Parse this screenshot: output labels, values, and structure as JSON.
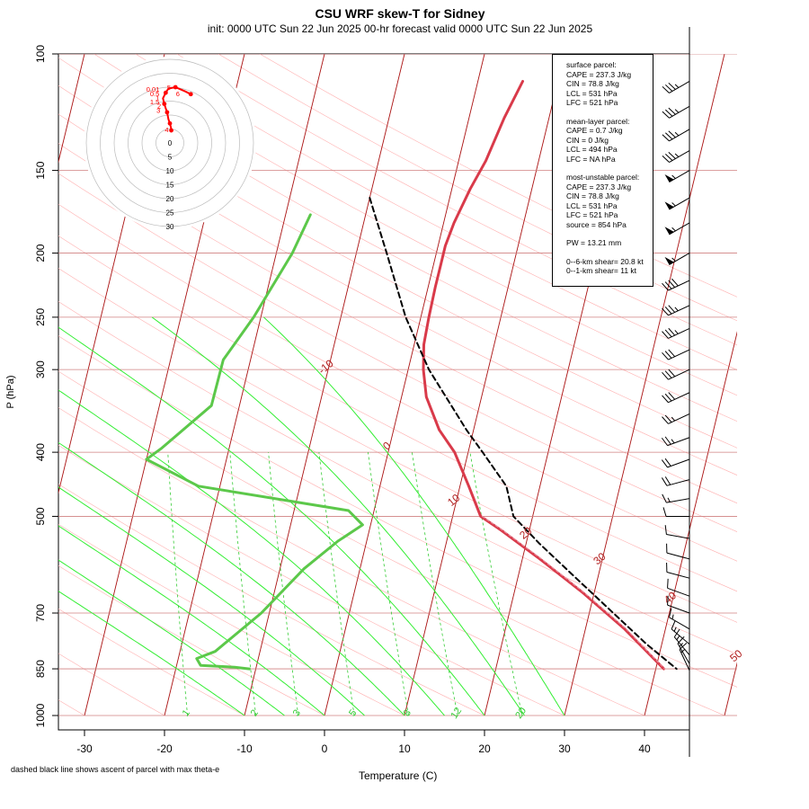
{
  "chart_data": {
    "type": "line",
    "title": "CSU WRF skew-T for Sidney",
    "subtitle": "init: 0000 UTC Sun 22 Jun 2025     00-hr forecast valid 0000 UTC Sun 22 Jun 2025",
    "xlabel": "Temperature (C)",
    "ylabel": "P (hPa)",
    "footnote": "dashed black line shows ascent of parcel with max theta-e",
    "x_ticks": [
      -30,
      -20,
      -10,
      0,
      10,
      20,
      30,
      40
    ],
    "pressure_ticks": [
      100,
      150,
      200,
      250,
      300,
      400,
      500,
      700,
      850,
      1000
    ],
    "pressure_range": [
      100,
      1000
    ],
    "isotherm_labels": [
      "-10",
      "0",
      "10",
      "20",
      "30",
      "40",
      "50"
    ],
    "mixing_ratio_labels": [
      "1",
      "2",
      "3",
      "5",
      "8",
      "12",
      "20"
    ],
    "series": [
      {
        "role": "temperature",
        "color": "#d93a4a",
        "points": [
          [
            5.6,
            110
          ],
          [
            4.4,
            125
          ],
          [
            3.4,
            145
          ],
          [
            2.3,
            160
          ],
          [
            1.3,
            180
          ],
          [
            0.9,
            195
          ],
          [
            0.9,
            210
          ],
          [
            0.9,
            225
          ],
          [
            1.0,
            250
          ],
          [
            1.2,
            275
          ],
          [
            1.9,
            300
          ],
          [
            3.1,
            330
          ],
          [
            5.7,
            370
          ],
          [
            8.3,
            400
          ],
          [
            11.1,
            450
          ],
          [
            13.5,
            500
          ],
          [
            16.5,
            525
          ],
          [
            22.2,
            580
          ],
          [
            28.4,
            650
          ],
          [
            34.9,
            740
          ],
          [
            41.0,
            850
          ]
        ]
      },
      {
        "role": "dewpoint",
        "color": "#5cc84a",
        "points": [
          [
            -16.9,
            175
          ],
          [
            -18.0,
            200
          ],
          [
            -20.9,
            250
          ],
          [
            -23.4,
            290
          ],
          [
            -23.5,
            340
          ],
          [
            -28.5,
            395
          ],
          [
            -30.0,
            410
          ],
          [
            -22.7,
            450
          ],
          [
            -3.2,
            490
          ],
          [
            -1.0,
            515
          ],
          [
            -3.6,
            545
          ],
          [
            -7.0,
            600
          ],
          [
            -11.0,
            700
          ],
          [
            -15.6,
            800
          ],
          [
            -17.7,
            820
          ],
          [
            -17.0,
            840
          ],
          [
            -12.7,
            845
          ],
          [
            -10.8,
            850
          ]
        ]
      },
      {
        "role": "parcel",
        "color": "#000000",
        "points": [
          [
            -10.0,
            165
          ],
          [
            -6.2,
            200
          ],
          [
            -1.9,
            250
          ],
          [
            2.6,
            300
          ],
          [
            9.1,
            370
          ],
          [
            11.8,
            400
          ],
          [
            15.8,
            450
          ],
          [
            17.6,
            500
          ],
          [
            21.7,
            550
          ],
          [
            27.3,
            620
          ],
          [
            33.0,
            700
          ],
          [
            38.1,
            780
          ],
          [
            42.6,
            850
          ]
        ]
      },
      {
        "role": "virtual-temperature",
        "color": "#e88a9a",
        "points": [
          [
            13.7,
            500
          ],
          [
            16.7,
            525
          ],
          [
            22.4,
            580
          ],
          [
            28.6,
            650
          ],
          [
            35.1,
            740
          ],
          [
            41.1,
            850
          ]
        ]
      }
    ],
    "wind_barbs": [
      {
        "p": 110,
        "dir": 240,
        "kt": 35
      },
      {
        "p": 120,
        "dir": 240,
        "kt": 35
      },
      {
        "p": 130,
        "dir": 240,
        "kt": 35
      },
      {
        "p": 140,
        "dir": 240,
        "kt": 35
      },
      {
        "p": 150,
        "dir": 240,
        "kt": 55
      },
      {
        "p": 165,
        "dir": 240,
        "kt": 55
      },
      {
        "p": 180,
        "dir": 240,
        "kt": 55
      },
      {
        "p": 200,
        "dir": 240,
        "kt": 55
      },
      {
        "p": 220,
        "dir": 245,
        "kt": 40
      },
      {
        "p": 240,
        "dir": 245,
        "kt": 35
      },
      {
        "p": 260,
        "dir": 245,
        "kt": 35
      },
      {
        "p": 280,
        "dir": 245,
        "kt": 30
      },
      {
        "p": 300,
        "dir": 245,
        "kt": 30
      },
      {
        "p": 325,
        "dir": 245,
        "kt": 30
      },
      {
        "p": 350,
        "dir": 245,
        "kt": 25
      },
      {
        "p": 380,
        "dir": 250,
        "kt": 25
      },
      {
        "p": 410,
        "dir": 250,
        "kt": 20
      },
      {
        "p": 440,
        "dir": 255,
        "kt": 20
      },
      {
        "p": 470,
        "dir": 260,
        "kt": 15
      },
      {
        "p": 500,
        "dir": 270,
        "kt": 10
      },
      {
        "p": 540,
        "dir": 280,
        "kt": 10
      },
      {
        "p": 580,
        "dir": 285,
        "kt": 10
      },
      {
        "p": 620,
        "dir": 285,
        "kt": 10
      },
      {
        "p": 660,
        "dir": 290,
        "kt": 10
      },
      {
        "p": 700,
        "dir": 290,
        "kt": 10
      },
      {
        "p": 740,
        "dir": 300,
        "kt": 15
      },
      {
        "p": 780,
        "dir": 310,
        "kt": 15
      },
      {
        "p": 810,
        "dir": 320,
        "kt": 15
      },
      {
        "p": 835,
        "dir": 330,
        "kt": 15
      },
      {
        "p": 855,
        "dir": 335,
        "kt": 15
      }
    ],
    "hodograph": {
      "ring_labels": [
        "0",
        "5",
        "10",
        "15",
        "20",
        "25",
        "30"
      ],
      "ring_speeds_kt": [
        0,
        5,
        10,
        15,
        20,
        25,
        30
      ],
      "height_labels": [
        "4",
        "3",
        "2",
        "1.5",
        "1",
        "0.5",
        "0.01",
        "5",
        "6"
      ],
      "color": "#ff0000",
      "points_uv_kt": [
        [
          0.5,
          4.5
        ],
        [
          0.4,
          5.5
        ],
        [
          0.0,
          7.0
        ],
        [
          -0.5,
          8.5
        ],
        [
          -1.0,
          11.0
        ],
        [
          -1.5,
          12.5
        ],
        [
          -2.0,
          14.0
        ],
        [
          -2.5,
          16.0
        ],
        [
          -1.5,
          18.0
        ],
        [
          -0.5,
          19.5
        ],
        [
          2.0,
          20.0
        ],
        [
          5.5,
          18.5
        ],
        [
          7.5,
          17.5
        ]
      ]
    }
  },
  "info_box": {
    "surface": {
      "header": "surface parcel:",
      "cape": "CAPE = 237.3 J/kg",
      "cin": "CIN = 78.8 J/kg",
      "lcl": "LCL = 531 hPa",
      "lfc": "LFC = 521 hPa"
    },
    "mean_layer": {
      "header": "mean-layer parcel:",
      "cape": "CAPE = 0.7 J/kg",
      "cin": "CIN = 0 J/kg",
      "lcl": "LCL = 494 hPa",
      "lfc": "LFC = NA hPa"
    },
    "most_unstable": {
      "header": "most-unstable parcel:",
      "cape": "CAPE = 237.3 J/kg",
      "cin": "CIN = 78.8 J/kg",
      "lcl": "LCL = 531 hPa",
      "lfc": "LFC = 521 hPa",
      "source": "source = 854 hPa"
    },
    "pw": "PW =  13.21 mm",
    "shear6": "0--6-km shear= 20.8 kt",
    "shear1": "0--1-km shear= 11 kt"
  },
  "colors": {
    "isotherm": "#aa1111",
    "isotherm_label": "#b22222",
    "isobar": "#d08080",
    "dry_adiabat": "#ffb0b0",
    "mixing_ratio": "#33cc33",
    "moist_adiabat": "#33ee33",
    "hodo_ring": "#bbbbbb"
  }
}
